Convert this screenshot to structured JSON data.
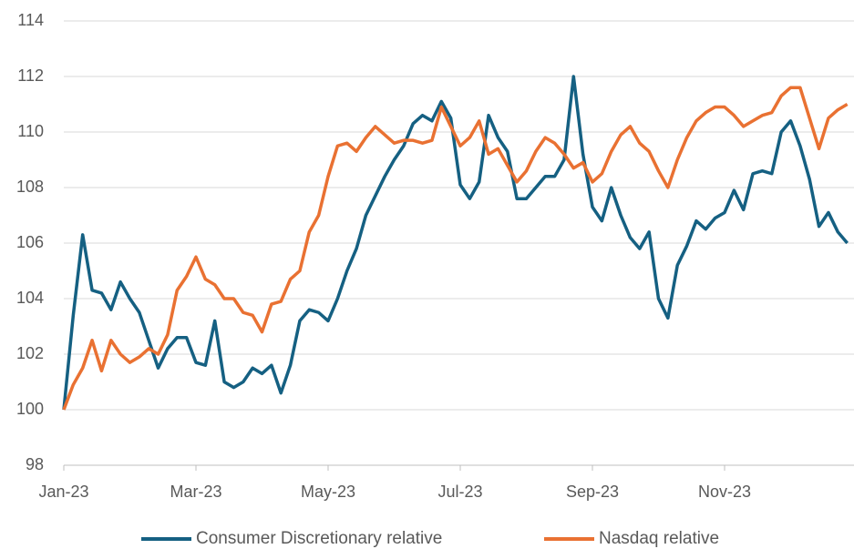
{
  "chart_data": {
    "type": "line",
    "categories": [
      "Jan-23",
      null,
      null,
      null,
      null,
      null,
      null,
      null,
      null,
      null,
      null,
      null,
      null,
      null,
      "Mar-23",
      null,
      null,
      null,
      null,
      null,
      null,
      null,
      null,
      null,
      null,
      null,
      null,
      null,
      "May-23",
      null,
      null,
      null,
      null,
      null,
      null,
      null,
      null,
      null,
      null,
      null,
      null,
      null,
      "Jul-23",
      null,
      null,
      null,
      null,
      null,
      null,
      null,
      null,
      null,
      null,
      null,
      null,
      null,
      "Sep-23",
      null,
      null,
      null,
      null,
      null,
      null,
      null,
      null,
      null,
      null,
      null,
      null,
      null,
      "Nov-23",
      null,
      null,
      null,
      null,
      null,
      null,
      null,
      null,
      null,
      null,
      null,
      null,
      null
    ],
    "series": [
      {
        "name": "Consumer Discretionary relative",
        "color": "#156082",
        "values": [
          100,
          103.4,
          106.3,
          104.3,
          104.2,
          103.6,
          104.6,
          104,
          103.5,
          102.5,
          101.5,
          102.2,
          102.6,
          102.6,
          101.7,
          101.6,
          103.2,
          101,
          100.8,
          101,
          101.5,
          101.3,
          101.6,
          100.6,
          101.6,
          103.2,
          103.6,
          103.5,
          103.2,
          104,
          105,
          105.8,
          107,
          107.7,
          108.4,
          109,
          109.5,
          110.3,
          110.6,
          110.4,
          111.1,
          110.5,
          108.1,
          107.6,
          108.2,
          110.6,
          109.8,
          109.3,
          107.6,
          107.6,
          108,
          108.4,
          108.4,
          109,
          112,
          109.2,
          107.3,
          106.8,
          108,
          107,
          106.2,
          105.8,
          106.4,
          104,
          103.3,
          105.2,
          105.9,
          106.8,
          106.5,
          106.9,
          107.1,
          107.9,
          107.2,
          108.5,
          108.6,
          108.5,
          110,
          110.4,
          109.5,
          108.3,
          106.6,
          107.1,
          106.4,
          106
        ]
      },
      {
        "name": "Nasdaq relative",
        "color": "#e97132",
        "values": [
          100,
          100.9,
          101.5,
          102.5,
          101.4,
          102.5,
          102,
          101.7,
          101.9,
          102.2,
          102,
          102.7,
          104.3,
          104.8,
          105.5,
          104.7,
          104.5,
          104,
          104,
          103.5,
          103.4,
          102.8,
          103.8,
          103.9,
          104.7,
          105,
          106.4,
          107,
          108.4,
          109.5,
          109.6,
          109.3,
          109.8,
          110.2,
          109.9,
          109.6,
          109.7,
          109.7,
          109.6,
          109.7,
          110.9,
          110.2,
          109.5,
          109.8,
          110.4,
          109.2,
          109.4,
          108.8,
          108.2,
          108.6,
          109.3,
          109.8,
          109.6,
          109.2,
          108.7,
          108.9,
          108.2,
          108.5,
          109.3,
          109.9,
          110.2,
          109.6,
          109.3,
          108.6,
          108,
          109,
          109.8,
          110.4,
          110.7,
          110.9,
          110.9,
          110.6,
          110.2,
          110.4,
          110.6,
          110.7,
          111.3,
          111.6,
          111.6,
          110.5,
          109.4,
          110.5,
          110.8,
          111
        ]
      }
    ],
    "ylim": [
      98,
      114
    ],
    "yticks": [
      98,
      100,
      102,
      104,
      106,
      108,
      110,
      112,
      114
    ],
    "grid": true,
    "legend": "bottom"
  }
}
